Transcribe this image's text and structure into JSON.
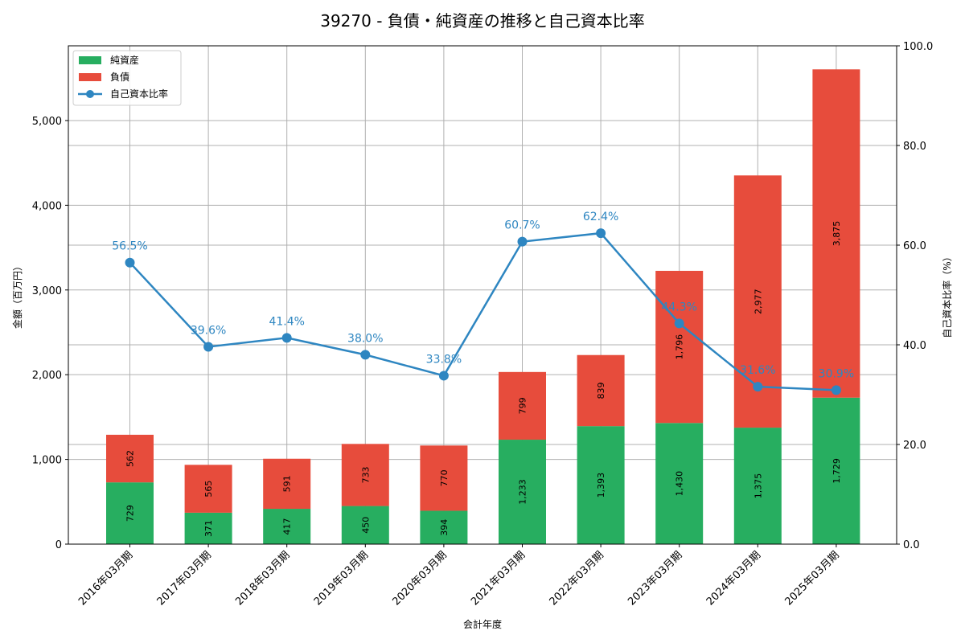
{
  "chart_data": {
    "type": "bar",
    "stacked": true,
    "title": "39270 - 負債・純資産の推移と自己資本比率",
    "xlabel": "会計年度",
    "ylabel": "金額（百万円）",
    "ylabel_right": "自己資本比率（%）",
    "categories": [
      "2016年03月期",
      "2017年03月期",
      "2018年03月期",
      "2019年03月期",
      "2020年03月期",
      "2021年03月期",
      "2022年03月期",
      "2023年03月期",
      "2024年03月期",
      "2025年03月期"
    ],
    "series": [
      {
        "name": "純資産",
        "type": "bar",
        "color": "#27ae60",
        "values": [
          729,
          371,
          417,
          450,
          394,
          1233,
          1393,
          1430,
          1375,
          1729
        ]
      },
      {
        "name": "負債",
        "type": "bar",
        "color": "#e74c3c",
        "values": [
          562,
          565,
          591,
          733,
          770,
          799,
          839,
          1796,
          2977,
          3875
        ]
      },
      {
        "name": "自己資本比率",
        "type": "line",
        "axis": "right",
        "color": "#2e86c1",
        "values": [
          56.5,
          39.6,
          41.4,
          38.0,
          33.8,
          60.7,
          62.4,
          44.3,
          31.6,
          30.9
        ]
      }
    ],
    "ylim": [
      0,
      5882
    ],
    "yticks": [
      0,
      1000,
      2000,
      3000,
      4000,
      5000
    ],
    "ytick_labels": [
      "0",
      "1,000",
      "2,000",
      "3,000",
      "4,000",
      "5,000"
    ],
    "ylim_right": [
      0,
      100
    ],
    "yticks_right": [
      0,
      20,
      40,
      60,
      80,
      100
    ],
    "ytick_labels_right": [
      "0.0",
      "20.0",
      "40.0",
      "60.0",
      "80.0",
      "100.0"
    ],
    "grid": true,
    "legend_position": "upper left",
    "bar_labels_net_assets": [
      "729",
      "371",
      "417",
      "450",
      "394",
      "1,233",
      "1,393",
      "1,430",
      "1,375",
      "1,729"
    ],
    "bar_labels_liabilities": [
      "562",
      "565",
      "591",
      "733",
      "770",
      "799",
      "839",
      "1,796",
      "2,977",
      "3,875"
    ],
    "line_labels": [
      "56.5%",
      "39.6%",
      "41.4%",
      "38.0%",
      "33.8%",
      "60.7%",
      "62.4%",
      "44.3%",
      "31.6%",
      "30.9%"
    ]
  },
  "legend": {
    "items": [
      {
        "label": "純資産"
      },
      {
        "label": "負債"
      },
      {
        "label": "自己資本比率"
      }
    ]
  }
}
